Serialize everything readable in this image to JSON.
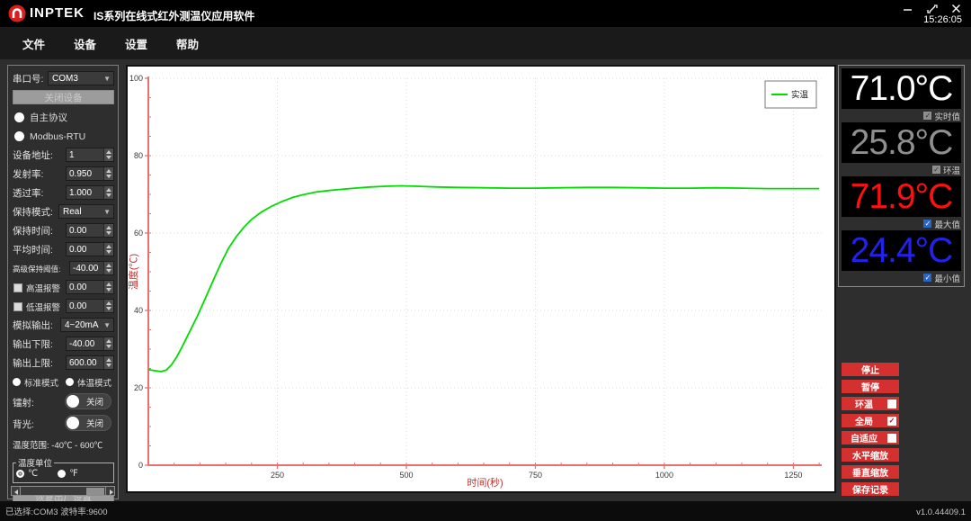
{
  "window": {
    "brand": "INPTEK",
    "title": "IS系列在线式红外测温仪应用软件",
    "time": "15:26:05"
  },
  "menu": {
    "items": [
      "文件",
      "设备",
      "设置",
      "帮助"
    ]
  },
  "sidebar": {
    "serial_label": "串口号:",
    "serial_value": "COM3",
    "close_device": "关闭设备",
    "protocol1": "自主协议",
    "protocol2": "Modbus-RTU",
    "addr_label": "设备地址:",
    "addr_value": "1",
    "emis_label": "发射率:",
    "emis_value": "0.950",
    "trans_label": "透过率:",
    "trans_value": "1.000",
    "hold_mode_label": "保持模式:",
    "hold_mode_value": "Real",
    "hold_time_label": "保持时间:",
    "hold_time_value": "0.00",
    "avg_time_label": "平均时间:",
    "avg_time_value": "0.00",
    "adv_hold_label": "高级保持阈值:",
    "adv_hold_value": "-40.00",
    "high_alarm_label": "高温报警",
    "high_alarm_value": "0.00",
    "low_alarm_label": "低温报警",
    "low_alarm_value": "0.00",
    "analog_label": "模拟输出:",
    "analog_value": "4~20mA",
    "out_low_label": "输出下限:",
    "out_low_value": "-40.00",
    "out_high_label": "输出上限:",
    "out_high_value": "600.00",
    "mode1": "标准模式",
    "mode2": "体温模式",
    "laser_label": "镭射:",
    "laser_state": "关闭",
    "backlight_label": "背光:",
    "backlight_state": "关闭",
    "range_text": "温度范围: -40℃ - 600℃",
    "unit_title": "温度单位",
    "unit_c": "℃",
    "unit_f": "℉",
    "factory_reset": "恢复出厂设置"
  },
  "readouts": [
    {
      "value": "71.0°C",
      "color": "#ffffff",
      "label": "实时值",
      "checked": true,
      "check_style": "grey"
    },
    {
      "value": "25.8°C",
      "color": "#8f8f8f",
      "label": "环温",
      "checked": true,
      "check_style": "grey"
    },
    {
      "value": "71.9°C",
      "color": "#ff0f0f",
      "label": "最大值",
      "checked": true,
      "check_style": "blue"
    },
    {
      "value": "24.4°C",
      "color": "#2222ee",
      "label": "最小值",
      "checked": true,
      "check_style": "blue"
    }
  ],
  "controls": [
    {
      "label": "停止"
    },
    {
      "label": "暂停"
    },
    {
      "label": "环温",
      "checkbox": true,
      "checked": false
    },
    {
      "label": "全局",
      "checkbox": true,
      "checked": true
    },
    {
      "label": "自适应",
      "checkbox": true,
      "checked": false
    },
    {
      "label": "水平缩放"
    },
    {
      "label": "垂直缩放"
    },
    {
      "label": "保存记录"
    }
  ],
  "status": {
    "left": "已选择:COM3  波特率:9600",
    "right": "v1.0.44409.1"
  },
  "colors": {
    "accent_red": "#d43030",
    "curve_green": "#00dc00",
    "axis_red": "#e87070",
    "grid_grey": "#dcdcdc"
  },
  "chart_data": {
    "type": "line",
    "xlabel": "时间(秒)",
    "ylabel": "温度(℃)",
    "xlim": [
      0,
      1305
    ],
    "ylim": [
      0,
      100
    ],
    "xticks": [
      250,
      500,
      750,
      1000,
      1250
    ],
    "yticks": [
      0,
      20,
      40,
      60,
      80,
      100
    ],
    "minor_step": {
      "x": 50,
      "y": 5
    },
    "grid": true,
    "legend": {
      "position": "top-right",
      "entries": [
        {
          "name": "实温",
          "color": "#00dc00"
        }
      ]
    },
    "axis_color": "#e87070",
    "label_color": "#c03333",
    "series": [
      {
        "name": "实温",
        "color": "#00dc00",
        "points": [
          [
            0,
            24.7
          ],
          [
            15,
            24.4
          ],
          [
            25,
            24.2
          ],
          [
            35,
            24.6
          ],
          [
            45,
            26.0
          ],
          [
            55,
            28.0
          ],
          [
            65,
            30.5
          ],
          [
            80,
            34.5
          ],
          [
            95,
            38.5
          ],
          [
            110,
            43.0
          ],
          [
            125,
            47.5
          ],
          [
            140,
            52.0
          ],
          [
            155,
            56.0
          ],
          [
            170,
            59.0
          ],
          [
            185,
            61.5
          ],
          [
            200,
            63.5
          ],
          [
            220,
            65.5
          ],
          [
            240,
            67.0
          ],
          [
            260,
            68.2
          ],
          [
            280,
            69.2
          ],
          [
            300,
            69.9
          ],
          [
            325,
            70.6
          ],
          [
            350,
            71.0
          ],
          [
            375,
            71.3
          ],
          [
            400,
            71.6
          ],
          [
            430,
            71.9
          ],
          [
            460,
            72.1
          ],
          [
            490,
            72.2
          ],
          [
            520,
            72.1
          ],
          [
            560,
            71.9
          ],
          [
            600,
            71.8
          ],
          [
            650,
            71.7
          ],
          [
            700,
            71.6
          ],
          [
            750,
            71.6
          ],
          [
            800,
            71.7
          ],
          [
            850,
            71.8
          ],
          [
            900,
            71.8
          ],
          [
            950,
            71.7
          ],
          [
            1000,
            71.6
          ],
          [
            1050,
            71.6
          ],
          [
            1100,
            71.7
          ],
          [
            1150,
            71.6
          ],
          [
            1200,
            71.5
          ],
          [
            1250,
            71.5
          ],
          [
            1300,
            71.5
          ]
        ]
      }
    ]
  }
}
